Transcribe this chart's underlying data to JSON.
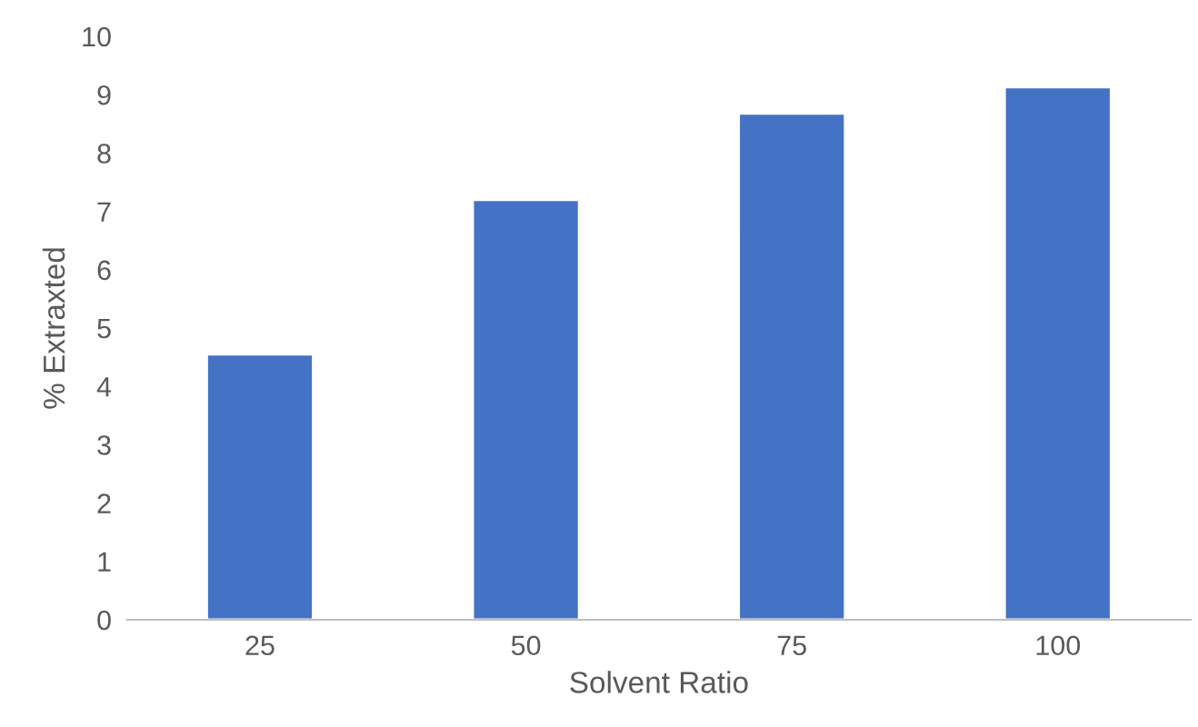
{
  "chart_data": {
    "type": "bar",
    "xlabel": "Solvent Ratio",
    "ylabel": "% Extraxted",
    "categories": [
      "25",
      "50",
      "75",
      "100"
    ],
    "values": [
      4.55,
      7.2,
      8.68,
      9.13
    ],
    "color": "#4472c4",
    "ylim": [
      0,
      10
    ],
    "yticks": [
      0,
      1,
      2,
      3,
      4,
      5,
      6,
      7,
      8,
      9,
      10
    ],
    "grid": false
  }
}
